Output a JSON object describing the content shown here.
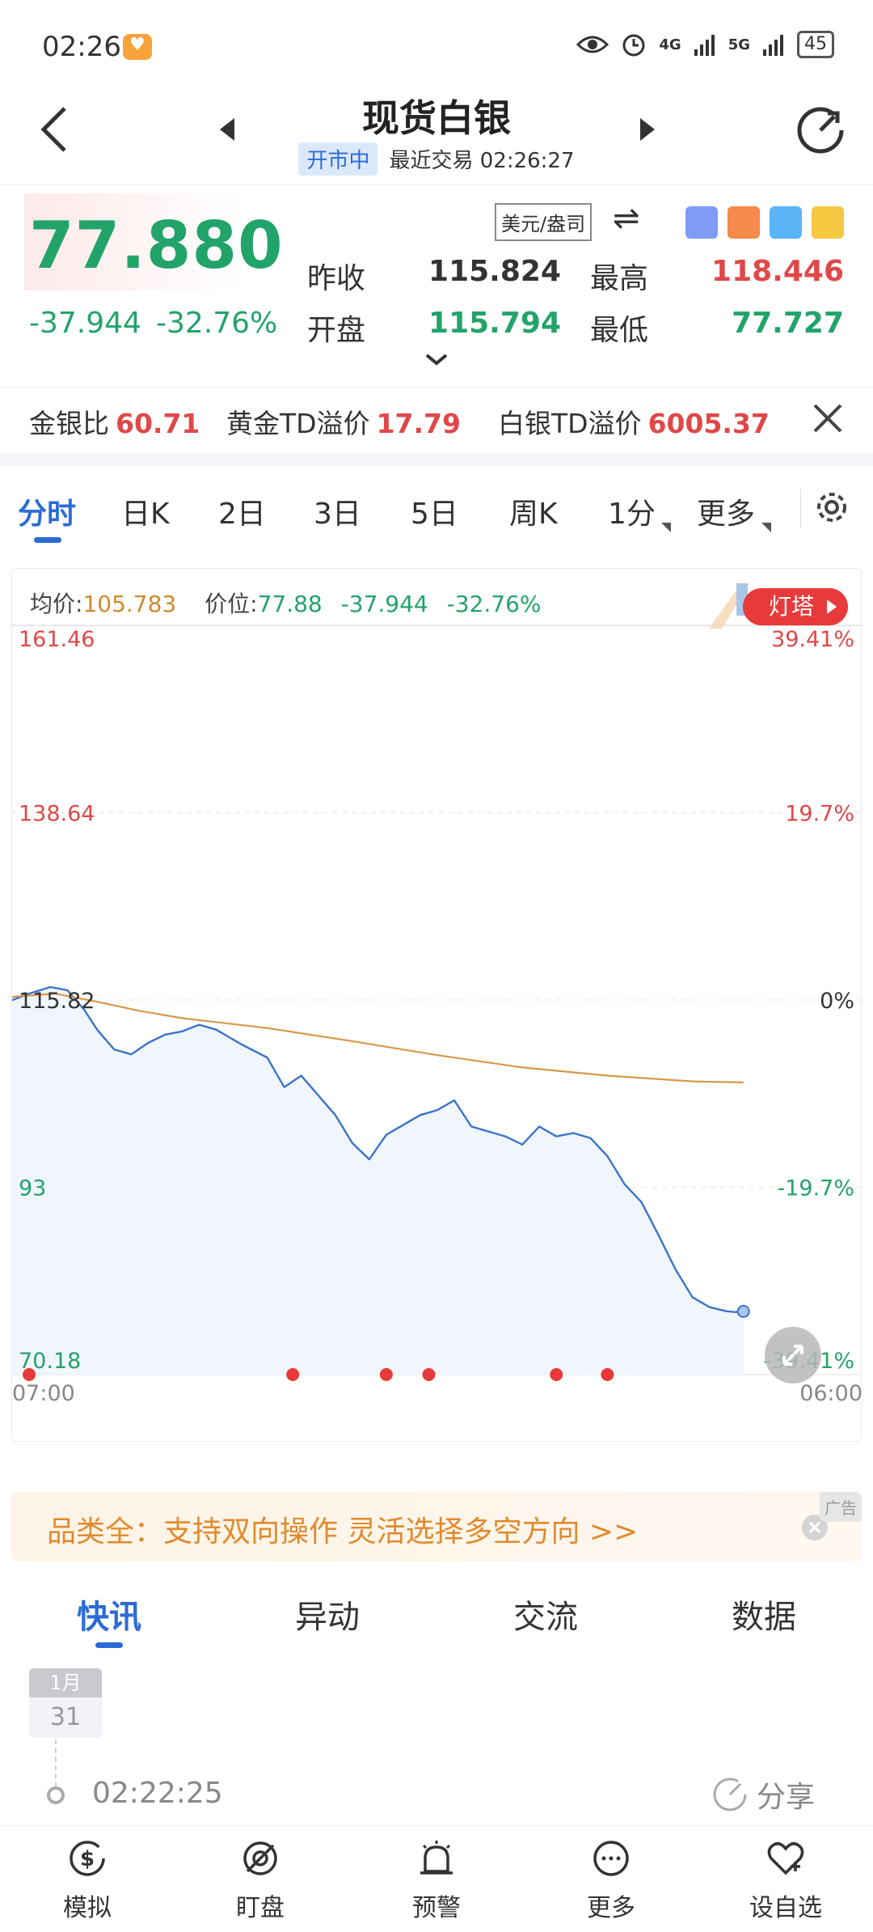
{
  "status_bar": {
    "time": "02:26",
    "net1": "4G",
    "net2": "5G",
    "battery": "45"
  },
  "header": {
    "title": "现货白银",
    "market_status": "开市中",
    "last_trade": "最近交易 02:26:27"
  },
  "quote": {
    "price": "77.880",
    "change": "-37.944",
    "change_pct": "-32.76%",
    "unit": "美元/盎司",
    "prev_close_label": "昨收",
    "prev_close": "115.824",
    "high_label": "最高",
    "high": "118.446",
    "open_label": "开盘",
    "open": "115.794",
    "low_label": "最低",
    "low": "77.727",
    "colors": {
      "up": "#e04848",
      "down": "#22a36a"
    }
  },
  "ratio_bar": {
    "items": [
      {
        "label": "金银比",
        "value": "60.71"
      },
      {
        "label": "黄金TD溢价",
        "value": "17.79"
      },
      {
        "label": "白银TD溢价",
        "value": "6005.37"
      }
    ]
  },
  "tabs": [
    {
      "label": "分时",
      "active": true
    },
    {
      "label": "日K"
    },
    {
      "label": "2日"
    },
    {
      "label": "3日"
    },
    {
      "label": "5日"
    },
    {
      "label": "周K"
    },
    {
      "label": "1分"
    },
    {
      "label": "更多"
    }
  ],
  "chart_legend": {
    "avg_label": "均价:",
    "avg_value": "105.783",
    "price_label": "价位:",
    "price_value": "77.88",
    "change": "-37.944",
    "change_pct": "-32.76%"
  },
  "lighthouse_label": "灯塔",
  "chart_data": {
    "type": "line",
    "x_start": "07:00",
    "x_end": "06:00",
    "ylim": [
      70.18,
      161.46
    ],
    "y_ticks_left": [
      "161.46",
      "138.64",
      "115.82",
      "93",
      "70.18"
    ],
    "y_ticks_right": [
      "39.41%",
      "19.7%",
      "0%",
      "-19.7%",
      "-39.41%"
    ],
    "prev_close": 115.82,
    "series": [
      {
        "kind": "price",
        "color": "#3a74c8",
        "x": [
          0,
          0.02,
          0.045,
          0.065,
          0.085,
          0.1,
          0.12,
          0.14,
          0.16,
          0.18,
          0.2,
          0.22,
          0.24,
          0.27,
          0.3,
          0.32,
          0.34,
          0.36,
          0.38,
          0.4,
          0.42,
          0.44,
          0.46,
          0.48,
          0.5,
          0.52,
          0.54,
          0.56,
          0.58,
          0.6,
          0.62,
          0.64,
          0.66,
          0.68,
          0.7,
          0.72,
          0.74,
          0.76,
          0.78,
          0.8,
          0.82,
          0.84,
          0.85,
          0.86
        ],
        "values": [
          115.8,
          116.6,
          117.4,
          117.0,
          114.6,
          112.2,
          109.8,
          109.2,
          110.6,
          111.6,
          112.0,
          112.8,
          112.2,
          110.4,
          108.8,
          105.2,
          106.6,
          104.2,
          101.8,
          98.4,
          96.4,
          99.4,
          100.6,
          101.8,
          102.4,
          103.6,
          100.4,
          99.8,
          99.2,
          98.2,
          100.4,
          99.2,
          99.6,
          99.0,
          96.8,
          93.4,
          91.2,
          87.2,
          83.0,
          79.6,
          78.4,
          77.9,
          77.8,
          77.88
        ]
      },
      {
        "kind": "average",
        "color": "#d9974a",
        "x": [
          0,
          0.05,
          0.1,
          0.15,
          0.2,
          0.3,
          0.4,
          0.5,
          0.6,
          0.7,
          0.8,
          0.86
        ],
        "values": [
          116.2,
          116.6,
          115.6,
          114.5,
          113.6,
          112.4,
          110.8,
          109.1,
          107.6,
          106.6,
          105.9,
          105.78
        ]
      }
    ],
    "event_markers_x": [
      0.02,
      0.33,
      0.44,
      0.49,
      0.64,
      0.7
    ],
    "grid": true
  },
  "ad": {
    "text": "品类全：支持双向操作 灵活选择多空方向 >>",
    "tag": "广告"
  },
  "news_tabs": [
    {
      "label": "快讯",
      "active": true
    },
    {
      "label": "异动"
    },
    {
      "label": "交流"
    },
    {
      "label": "数据"
    }
  ],
  "news": {
    "month": "1月",
    "day": "31",
    "time": "02:22:25",
    "share_label": "分享"
  },
  "bottom_nav": [
    {
      "label": "模拟",
      "icon": "dollar-icon"
    },
    {
      "label": "盯盘",
      "icon": "eye-off-icon"
    },
    {
      "label": "预警",
      "icon": "alarm-bell-icon"
    },
    {
      "label": "更多",
      "icon": "more-dots-icon"
    },
    {
      "label": "设自选",
      "icon": "heart-plus-icon"
    }
  ]
}
